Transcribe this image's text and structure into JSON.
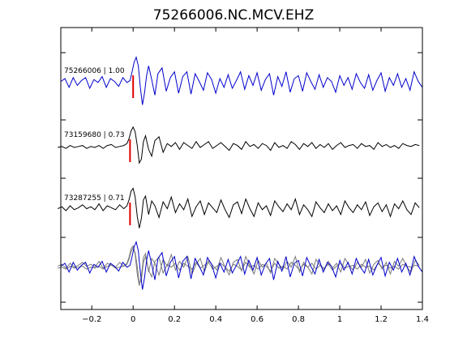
{
  "chart_data": {
    "type": "line",
    "title": "75266006.NC.MCV.EHZ",
    "xlabel": "",
    "ylabel": "",
    "xlim": [
      -0.35,
      1.4
    ],
    "xticks": [
      -0.2,
      0,
      0.2,
      0.4,
      0.6,
      0.8,
      1,
      1.2,
      1.4
    ],
    "xtick_labels": [
      "−0.2",
      "0",
      "0.2",
      "0.4",
      "0.6",
      "0.8",
      "1",
      "1.2",
      "1.4"
    ],
    "grid": false,
    "legend": "none",
    "pick_time": 0,
    "pick_color": "#e00000",
    "master_color": "#0000cc",
    "trace_color": "#000000",
    "stack_other_color": "#7a7a7a",
    "series": [
      {
        "name": "75266006 | 1.00",
        "event_id": "75266006",
        "correlation": 1.0,
        "color": "#0000cc",
        "pick_offset": 0,
        "wave_x": [
          -0.35,
          -0.33,
          -0.31,
          -0.29,
          -0.27,
          -0.25,
          -0.23,
          -0.21,
          -0.19,
          -0.17,
          -0.15,
          -0.13,
          -0.11,
          -0.09,
          -0.07,
          -0.05,
          -0.03,
          -0.015,
          -0.005,
          0.005,
          0.015,
          0.025,
          0.035,
          0.045,
          0.055,
          0.065,
          0.075,
          0.09,
          0.105,
          0.12,
          0.14,
          0.16,
          0.18,
          0.2,
          0.22,
          0.24,
          0.26,
          0.28,
          0.3,
          0.32,
          0.34,
          0.36,
          0.38,
          0.4,
          0.42,
          0.44,
          0.46,
          0.48,
          0.5,
          0.52,
          0.54,
          0.56,
          0.58,
          0.6,
          0.62,
          0.64,
          0.66,
          0.68,
          0.7,
          0.72,
          0.74,
          0.76,
          0.78,
          0.8,
          0.82,
          0.84,
          0.86,
          0.88,
          0.9,
          0.92,
          0.94,
          0.96,
          0.98,
          1.0,
          1.02,
          1.04,
          1.06,
          1.08,
          1.1,
          1.12,
          1.14,
          1.16,
          1.18,
          1.2,
          1.22,
          1.24,
          1.26,
          1.28,
          1.3,
          1.32,
          1.34,
          1.36,
          1.38,
          1.4
        ],
        "wave_y": [
          0.1,
          0.25,
          -0.2,
          0.3,
          -0.1,
          0.15,
          0.3,
          -0.25,
          0.2,
          0.05,
          0.35,
          -0.2,
          0.25,
          0.1,
          -0.15,
          0.3,
          0.05,
          0.15,
          0.6,
          1.1,
          1.35,
          0.9,
          -0.2,
          -1.1,
          -0.5,
          0.4,
          0.9,
          0.2,
          -0.6,
          0.5,
          0.8,
          -0.4,
          0.3,
          0.6,
          -0.5,
          0.35,
          0.6,
          -0.55,
          0.5,
          0.1,
          -0.35,
          0.55,
          0.2,
          -0.5,
          0.25,
          -0.2,
          0.45,
          -0.25,
          0.15,
          0.6,
          -0.3,
          0.4,
          -0.1,
          0.55,
          -0.35,
          0.2,
          0.5,
          -0.6,
          0.35,
          -0.15,
          0.6,
          -0.45,
          0.25,
          0.4,
          -0.4,
          0.55,
          0.1,
          -0.3,
          0.45,
          -0.2,
          0.3,
          0.1,
          -0.45,
          0.4,
          -0.1,
          0.3,
          -0.3,
          0.5,
          0.05,
          -0.25,
          0.45,
          -0.35,
          0.15,
          0.55,
          -0.4,
          0.3,
          -0.1,
          0.5,
          -0.2,
          0.25,
          -0.35,
          0.6,
          0.1,
          -0.2
        ]
      },
      {
        "name": "73159680 | 0.73",
        "event_id": "73159680",
        "correlation": 0.73,
        "color": "#000000",
        "pick_offset": -0.015,
        "wave_x": [
          -0.35,
          -0.33,
          -0.31,
          -0.29,
          -0.27,
          -0.25,
          -0.23,
          -0.21,
          -0.19,
          -0.17,
          -0.15,
          -0.13,
          -0.11,
          -0.09,
          -0.07,
          -0.05,
          -0.03,
          -0.015,
          -0.005,
          0.005,
          0.015,
          0.025,
          0.035,
          0.045,
          0.055,
          0.065,
          0.075,
          0.09,
          0.105,
          0.12,
          0.14,
          0.16,
          0.18,
          0.2,
          0.22,
          0.24,
          0.26,
          0.28,
          0.3,
          0.32,
          0.34,
          0.36,
          0.38,
          0.4,
          0.42,
          0.44,
          0.46,
          0.48,
          0.5,
          0.52,
          0.54,
          0.56,
          0.58,
          0.6,
          0.62,
          0.64,
          0.66,
          0.68,
          0.7,
          0.72,
          0.74,
          0.76,
          0.78,
          0.8,
          0.82,
          0.84,
          0.86,
          0.88,
          0.9,
          0.92,
          0.94,
          0.96,
          0.98,
          1.0,
          1.02,
          1.04,
          1.06,
          1.08,
          1.1,
          1.12,
          1.14,
          1.16,
          1.18,
          1.2,
          1.22,
          1.24,
          1.26,
          1.28,
          1.3,
          1.32,
          1.34,
          1.36,
          1.38,
          1.4
        ],
        "wave_y": [
          0.0,
          0.05,
          -0.05,
          0.1,
          0.0,
          0.05,
          0.1,
          -0.05,
          0.05,
          0.0,
          0.1,
          -0.05,
          0.1,
          0.15,
          0.0,
          0.05,
          0.1,
          0.2,
          0.45,
          0.85,
          1.05,
          0.8,
          0.1,
          -0.8,
          -0.6,
          0.3,
          0.6,
          -0.1,
          -0.45,
          0.35,
          0.55,
          -0.25,
          0.2,
          0.05,
          0.25,
          -0.1,
          0.25,
          0.1,
          -0.05,
          0.3,
          0.0,
          0.15,
          0.3,
          -0.05,
          0.1,
          0.25,
          0.05,
          -0.15,
          0.2,
          0.1,
          -0.1,
          0.3,
          0.05,
          0.15,
          -0.05,
          0.2,
          0.1,
          -0.15,
          0.25,
          0.0,
          0.1,
          -0.05,
          0.3,
          0.15,
          -0.1,
          0.2,
          0.05,
          0.25,
          -0.05,
          0.15,
          0.0,
          0.2,
          -0.1,
          0.1,
          0.25,
          0.0,
          0.1,
          0.15,
          -0.05,
          0.2,
          0.05,
          0.1,
          -0.1,
          0.25,
          0.05,
          0.15,
          0.0,
          0.1,
          -0.05,
          0.2,
          0.1,
          0.05,
          0.15,
          0.1
        ]
      },
      {
        "name": "73287255 | 0.71",
        "event_id": "73287255",
        "correlation": 0.71,
        "color": "#000000",
        "pick_offset": -0.015,
        "wave_x": [
          -0.35,
          -0.33,
          -0.31,
          -0.29,
          -0.27,
          -0.25,
          -0.23,
          -0.21,
          -0.19,
          -0.17,
          -0.15,
          -0.13,
          -0.11,
          -0.09,
          -0.07,
          -0.05,
          -0.03,
          -0.015,
          -0.005,
          0.005,
          0.015,
          0.025,
          0.035,
          0.045,
          0.055,
          0.065,
          0.075,
          0.09,
          0.105,
          0.12,
          0.14,
          0.16,
          0.18,
          0.2,
          0.22,
          0.24,
          0.26,
          0.28,
          0.3,
          0.32,
          0.34,
          0.36,
          0.38,
          0.4,
          0.42,
          0.44,
          0.46,
          0.48,
          0.5,
          0.52,
          0.54,
          0.56,
          0.58,
          0.6,
          0.62,
          0.64,
          0.66,
          0.68,
          0.7,
          0.72,
          0.74,
          0.76,
          0.78,
          0.8,
          0.82,
          0.84,
          0.86,
          0.88,
          0.9,
          0.92,
          0.94,
          0.96,
          0.98,
          1.0,
          1.02,
          1.04,
          1.06,
          1.08,
          1.1,
          1.12,
          1.14,
          1.16,
          1.18,
          1.2,
          1.22,
          1.24,
          1.26,
          1.28,
          1.3,
          1.32,
          1.34,
          1.36,
          1.38,
          1.4
        ],
        "wave_y": [
          0.1,
          0.2,
          0.0,
          0.25,
          0.05,
          0.15,
          0.3,
          0.1,
          0.2,
          0.05,
          0.35,
          0.0,
          0.25,
          0.15,
          0.05,
          0.3,
          0.1,
          0.25,
          0.55,
          1.0,
          1.15,
          0.7,
          -0.3,
          -0.9,
          -0.4,
          0.55,
          0.75,
          -0.2,
          0.5,
          0.25,
          -0.35,
          0.45,
          0.1,
          0.7,
          -0.1,
          0.35,
          0.05,
          0.6,
          -0.3,
          0.2,
          0.5,
          -0.2,
          0.4,
          0.15,
          -0.1,
          0.55,
          0.05,
          -0.35,
          0.3,
          0.45,
          -0.15,
          0.6,
          0.1,
          -0.3,
          0.4,
          0.05,
          0.25,
          -0.25,
          0.5,
          0.2,
          -0.05,
          0.35,
          0.05,
          0.6,
          -0.2,
          0.3,
          0.05,
          -0.3,
          0.45,
          0.15,
          -0.1,
          0.35,
          0.0,
          0.25,
          -0.2,
          0.5,
          0.15,
          -0.1,
          0.3,
          0.05,
          0.45,
          -0.25,
          0.2,
          0.4,
          -0.05,
          0.3,
          -0.3,
          0.35,
          0.1,
          0.5,
          0.05,
          -0.2,
          0.4,
          0.15
        ]
      }
    ]
  }
}
